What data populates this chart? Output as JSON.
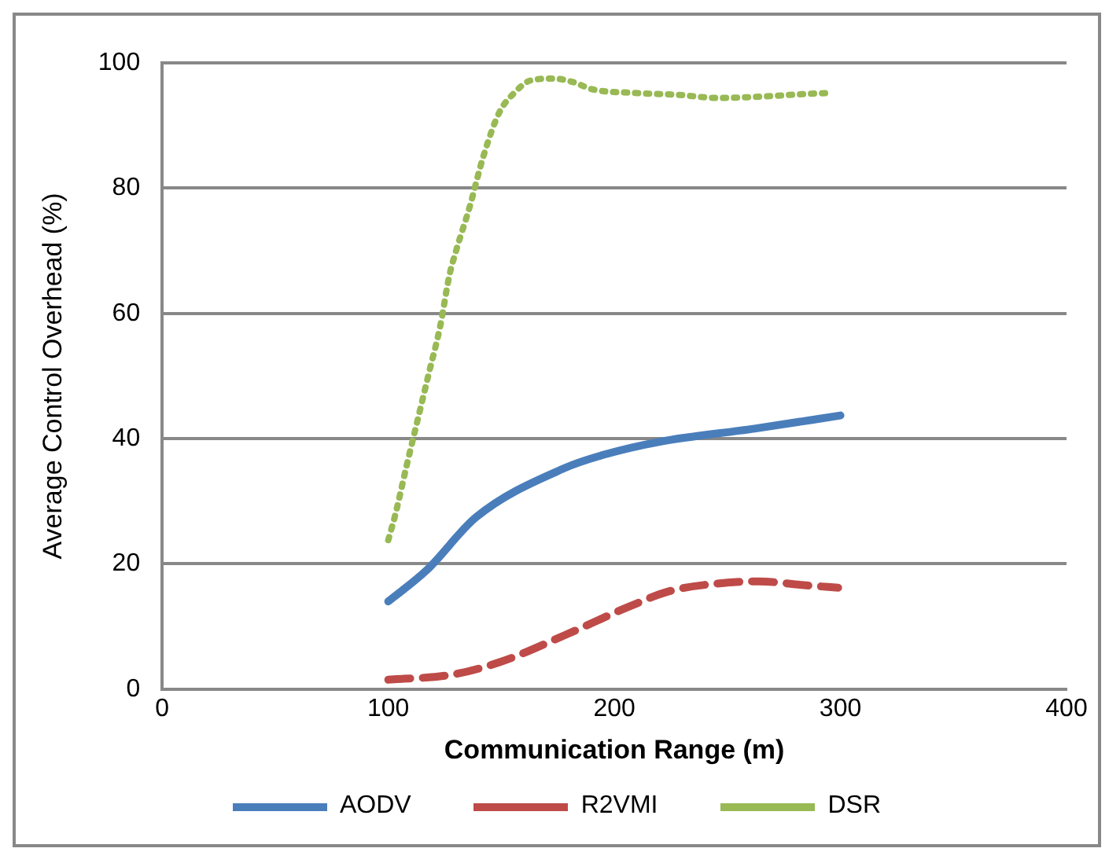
{
  "chart_data": {
    "type": "line",
    "xlabel": "Communication Range (m)",
    "ylabel": "Average Control Overhead (%)",
    "xlim": [
      0,
      400
    ],
    "xticks": [
      0,
      100,
      200,
      300,
      400
    ],
    "ylim": [
      0,
      100
    ],
    "yticks": [
      0,
      20,
      40,
      60,
      80,
      100
    ],
    "grid": "y",
    "legend": "bottom",
    "marker": "none",
    "series": [
      {
        "name": "AODV",
        "color": "#4a7ebb",
        "line_style": "solid",
        "x": [
          100,
          117,
          139,
          178,
          195,
          220,
          262,
          300
        ],
        "values": [
          14,
          19,
          27.5,
          35.3,
          37.4,
          39.5,
          41.6,
          43.7
        ]
      },
      {
        "name": "R2VMI",
        "color": "#be4b48",
        "line_style": "dashed",
        "x": [
          100,
          128,
          150,
          178,
          206,
          225,
          250,
          264,
          284,
          299
        ],
        "values": [
          1.5,
          2.3,
          4.4,
          8.6,
          13.1,
          15.7,
          17,
          17.2,
          16.6,
          16.2
        ]
      },
      {
        "name": "DSR",
        "color": "#98b954",
        "line_style": "dotted",
        "x": [
          100,
          103,
          108,
          113,
          118,
          123,
          127,
          130,
          136,
          142,
          149,
          156,
          163,
          173,
          182,
          190,
          209,
          228,
          246,
          264,
          283,
          295
        ],
        "values": [
          23.8,
          27.7,
          35.5,
          43,
          50.5,
          58,
          66,
          70,
          77,
          85,
          92,
          95.3,
          97.2,
          97.5,
          96.9,
          95.8,
          95.2,
          94.9,
          94.4,
          94.6,
          95,
          95.2
        ]
      }
    ]
  }
}
